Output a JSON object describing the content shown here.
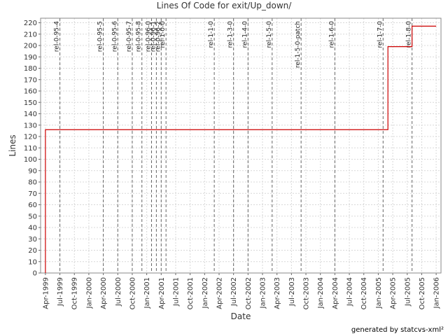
{
  "chart_data": {
    "type": "line",
    "title": "Lines Of Code for exit/Up_down/",
    "x_label": "Date",
    "y_label": "Lines",
    "footer": "generated by statcvs-xml²",
    "series": [
      {
        "name": "Lines",
        "color": "#cc0000",
        "x": [
          "1999-04",
          "1999-04",
          "2005-03",
          "2005-08",
          "2006-01"
        ],
        "values": [
          0,
          126,
          199,
          217,
          217
        ]
      }
    ],
    "xlim": [
      "1999-03",
      "2006-02"
    ],
    "xticks": [
      {
        "value": "1999-04",
        "label": "Apr-1999"
      },
      {
        "value": "1999-07",
        "label": "Jul-1999"
      },
      {
        "value": "1999-10",
        "label": "Oct-1999"
      },
      {
        "value": "2000-01",
        "label": "Jan-2000"
      },
      {
        "value": "2000-04",
        "label": "Apr-2000"
      },
      {
        "value": "2000-07",
        "label": "Jul-2000"
      },
      {
        "value": "2000-10",
        "label": "Oct-2000"
      },
      {
        "value": "2001-01",
        "label": "Jan-2001"
      },
      {
        "value": "2001-04",
        "label": "Apr-2001"
      },
      {
        "value": "2001-07",
        "label": "Jul-2001"
      },
      {
        "value": "2001-10",
        "label": "Oct-2001"
      },
      {
        "value": "2002-01",
        "label": "Jan-2002"
      },
      {
        "value": "2002-04",
        "label": "Apr-2002"
      },
      {
        "value": "2002-07",
        "label": "Jul-2002"
      },
      {
        "value": "2002-10",
        "label": "Oct-2002"
      },
      {
        "value": "2003-01",
        "label": "Jan-2003"
      },
      {
        "value": "2003-04",
        "label": "Apr-2003"
      },
      {
        "value": "2003-07",
        "label": "Jul-2003"
      },
      {
        "value": "2003-10",
        "label": "Oct-2003"
      },
      {
        "value": "2004-01",
        "label": "Jan-2004"
      },
      {
        "value": "2004-04",
        "label": "Apr-2004"
      },
      {
        "value": "2004-07",
        "label": "Jul-2004"
      },
      {
        "value": "2004-10",
        "label": "Oct-2004"
      },
      {
        "value": "2005-01",
        "label": "Jan-2005"
      },
      {
        "value": "2005-04",
        "label": "Apr-2005"
      },
      {
        "value": "2005-07",
        "label": "Jul-2005"
      },
      {
        "value": "2005-10",
        "label": "Oct-2005"
      },
      {
        "value": "2006-01",
        "label": "Jan-2006"
      }
    ],
    "ylim": [
      0,
      224
    ],
    "yticks": [
      0,
      10,
      20,
      30,
      40,
      50,
      60,
      70,
      80,
      90,
      100,
      110,
      120,
      130,
      140,
      150,
      160,
      170,
      180,
      190,
      200,
      210,
      220
    ],
    "grid": true,
    "tags": [
      {
        "label": "rel-0-95-4",
        "x": "1999-07"
      },
      {
        "label": "rel-0-95-5",
        "x": "2000-04"
      },
      {
        "label": "rel-0-95-6",
        "x": "2000-07"
      },
      {
        "label": "rel-0-95-7",
        "x": "2000-10"
      },
      {
        "label": "rel-0-95-8",
        "x": "2000-12"
      },
      {
        "label": "rel-0-96-0",
        "x": "2001-02"
      },
      {
        "label": "rel-0-96-1",
        "x": "2001-03"
      },
      {
        "label": "rel-0-96-2",
        "x": "2001-04"
      },
      {
        "label": "rel-1-0-0",
        "x": "2001-05"
      },
      {
        "label": "rel-1-1-0",
        "x": "2002-03"
      },
      {
        "label": "rel-1-3-0",
        "x": "2002-07"
      },
      {
        "label": "rel-1-4-0",
        "x": "2002-10"
      },
      {
        "label": "rel-1-5-0",
        "x": "2003-03"
      },
      {
        "label": "rel-1-5-0-patch",
        "x": "2003-09"
      },
      {
        "label": "rel-1-6-0",
        "x": "2004-04"
      },
      {
        "label": "rel-1-7-0",
        "x": "2005-02"
      },
      {
        "label": "rel-1-8-0",
        "x": "2005-08"
      }
    ]
  }
}
